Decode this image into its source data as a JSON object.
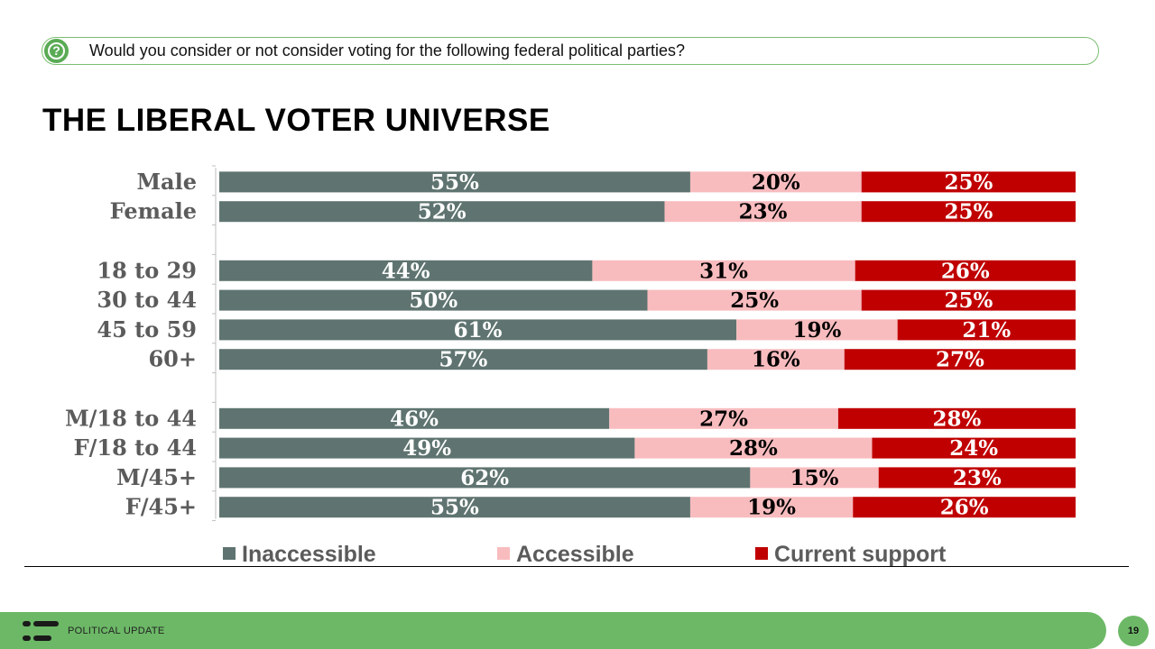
{
  "question": {
    "icon": "question-icon",
    "text": "Would you consider or not consider voting for the following federal political parties?"
  },
  "title": "THE LIBERAL VOTER UNIVERSE",
  "chart_data": {
    "type": "bar",
    "orientation": "horizontal",
    "stacked": "percent",
    "categories": [
      "Male",
      "Female",
      "",
      "18 to 29",
      "30 to 44",
      "45 to 59",
      "60+",
      "",
      "M/18 to 44",
      "F/18 to 44",
      "M/45+",
      "F/45+"
    ],
    "series": [
      {
        "name": "Inaccessible",
        "color": "#5f7470",
        "values": [
          55,
          52,
          null,
          44,
          50,
          61,
          57,
          null,
          46,
          49,
          62,
          55
        ]
      },
      {
        "name": "Accessible",
        "color": "#f8bcbf",
        "values": [
          20,
          23,
          null,
          31,
          25,
          19,
          16,
          null,
          27,
          28,
          15,
          19
        ]
      },
      {
        "name": "Current support",
        "color": "#c00000",
        "values": [
          25,
          25,
          null,
          26,
          25,
          21,
          27,
          null,
          28,
          24,
          23,
          26
        ]
      }
    ],
    "xlim": [
      0,
      100
    ],
    "grid": false,
    "legend": "bottom"
  },
  "footer": {
    "label": "POLITICAL UPDATE",
    "page_number": "19",
    "logo_icon": "company-logo-icon",
    "accent_color": "#6cb866"
  }
}
